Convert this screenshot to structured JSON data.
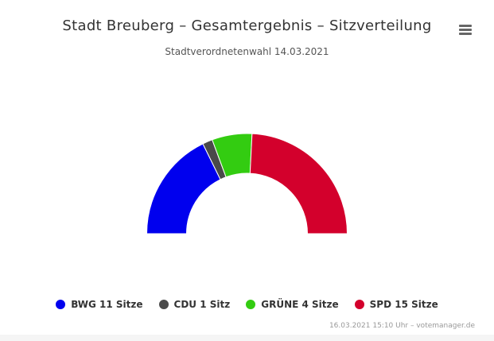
{
  "header": {
    "title": "Stadt Breuberg – Gesamtergebnis – Sitzverteilung",
    "subtitle": "Stadtverordnetenwahl 14.03.2021"
  },
  "menu_icon": "hamburger-menu-icon",
  "legend": [
    {
      "label": "BWG 11 Sitze",
      "color": "#0000ee"
    },
    {
      "label": "CDU 1 Sitz",
      "color": "#4a4a4a"
    },
    {
      "label": "GRÜNE 4 Sitze",
      "color": "#33cc11"
    },
    {
      "label": "SPD 15 Sitze",
      "color": "#d3002c"
    }
  ],
  "credits": "16.03.2021 15:10 Uhr – votemanager.de",
  "chart_data": {
    "type": "pie",
    "variant": "semi-donut (parliament seat distribution)",
    "title": "Stadt Breuberg – Gesamtergebnis – Sitzverteilung",
    "subtitle": "Stadtverordnetenwahl 14.03.2021",
    "legend_position": "bottom",
    "categories": [
      "BWG",
      "CDU",
      "GRÜNE",
      "SPD"
    ],
    "values": [
      11,
      1,
      4,
      15
    ],
    "colors": [
      "#0000ee",
      "#4a4a4a",
      "#33cc11",
      "#d3002c"
    ]
  }
}
